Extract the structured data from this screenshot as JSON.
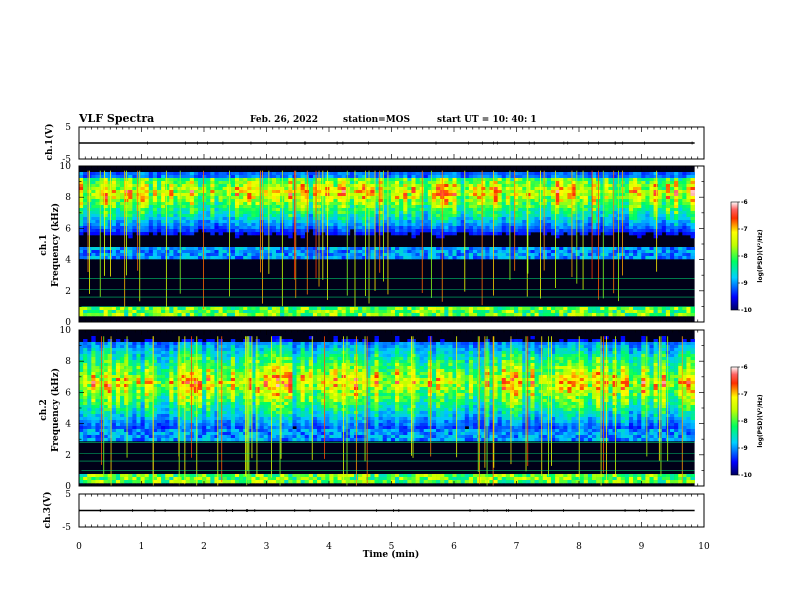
{
  "header": {
    "title": "VLF Spectra",
    "date": "Feb. 26, 2022",
    "station": "station=MOS",
    "start": "start  UT =   10: 40: 1"
  },
  "chart_data": [
    {
      "type": "line",
      "panel": "ch1-voltage",
      "ylabel": "ch.1(V)",
      "ylim": [
        -5,
        5
      ],
      "yticks": [
        "5",
        "-5"
      ],
      "x": [
        0,
        9.85
      ],
      "values": [
        0,
        0
      ],
      "color": "#000000"
    },
    {
      "type": "heatmap",
      "panel": "ch1-spectrogram",
      "ylabel": "ch.1\nFrequency (kHz)",
      "ylim": [
        0,
        10
      ],
      "xlim": [
        0,
        10
      ],
      "yticks": [
        "0",
        "2",
        "4",
        "6",
        "8",
        "10"
      ],
      "data_xlim": [
        0,
        9.85
      ],
      "band_center_khz": 8.3,
      "band_bottom_khz": 4.8,
      "band_top_khz": 9.7,
      "low_band_khz": [
        0.3,
        1.0
      ],
      "colorbar": {
        "label": "log(PSD)(V²/Hz)",
        "ticks": [
          "-6",
          "-7",
          "-8",
          "-9",
          "-10"
        ],
        "range": [
          -10,
          -6
        ]
      }
    },
    {
      "type": "heatmap",
      "panel": "ch2-spectrogram",
      "ylabel": "ch.2\nFrequency (kHz)",
      "ylim": [
        0,
        10
      ],
      "xlim": [
        0,
        10
      ],
      "yticks": [
        "0",
        "2",
        "4",
        "6",
        "8",
        "10"
      ],
      "data_xlim": [
        0,
        9.85
      ],
      "band_center_khz": 6.6,
      "band_bottom_khz": 3.6,
      "band_top_khz": 9.6,
      "low_band_khz": [
        0.2,
        0.7
      ],
      "colorbar": {
        "label": "log(PSD)(V²/Hz)",
        "ticks": [
          "-6",
          "-7",
          "-8",
          "-9",
          "-10"
        ],
        "range": [
          -10,
          -6
        ]
      }
    },
    {
      "type": "line",
      "panel": "ch3-voltage",
      "ylabel": "ch.3(V)",
      "ylim": [
        -5,
        5
      ],
      "yticks": [
        "5",
        "-5"
      ],
      "x": [
        0,
        9.85
      ],
      "values": [
        0,
        0
      ],
      "color": "#000000"
    }
  ],
  "xaxis": {
    "label": "Time  (min)",
    "ticks": [
      "0",
      "1",
      "2",
      "3",
      "4",
      "5",
      "6",
      "7",
      "8",
      "9",
      "10"
    ]
  }
}
